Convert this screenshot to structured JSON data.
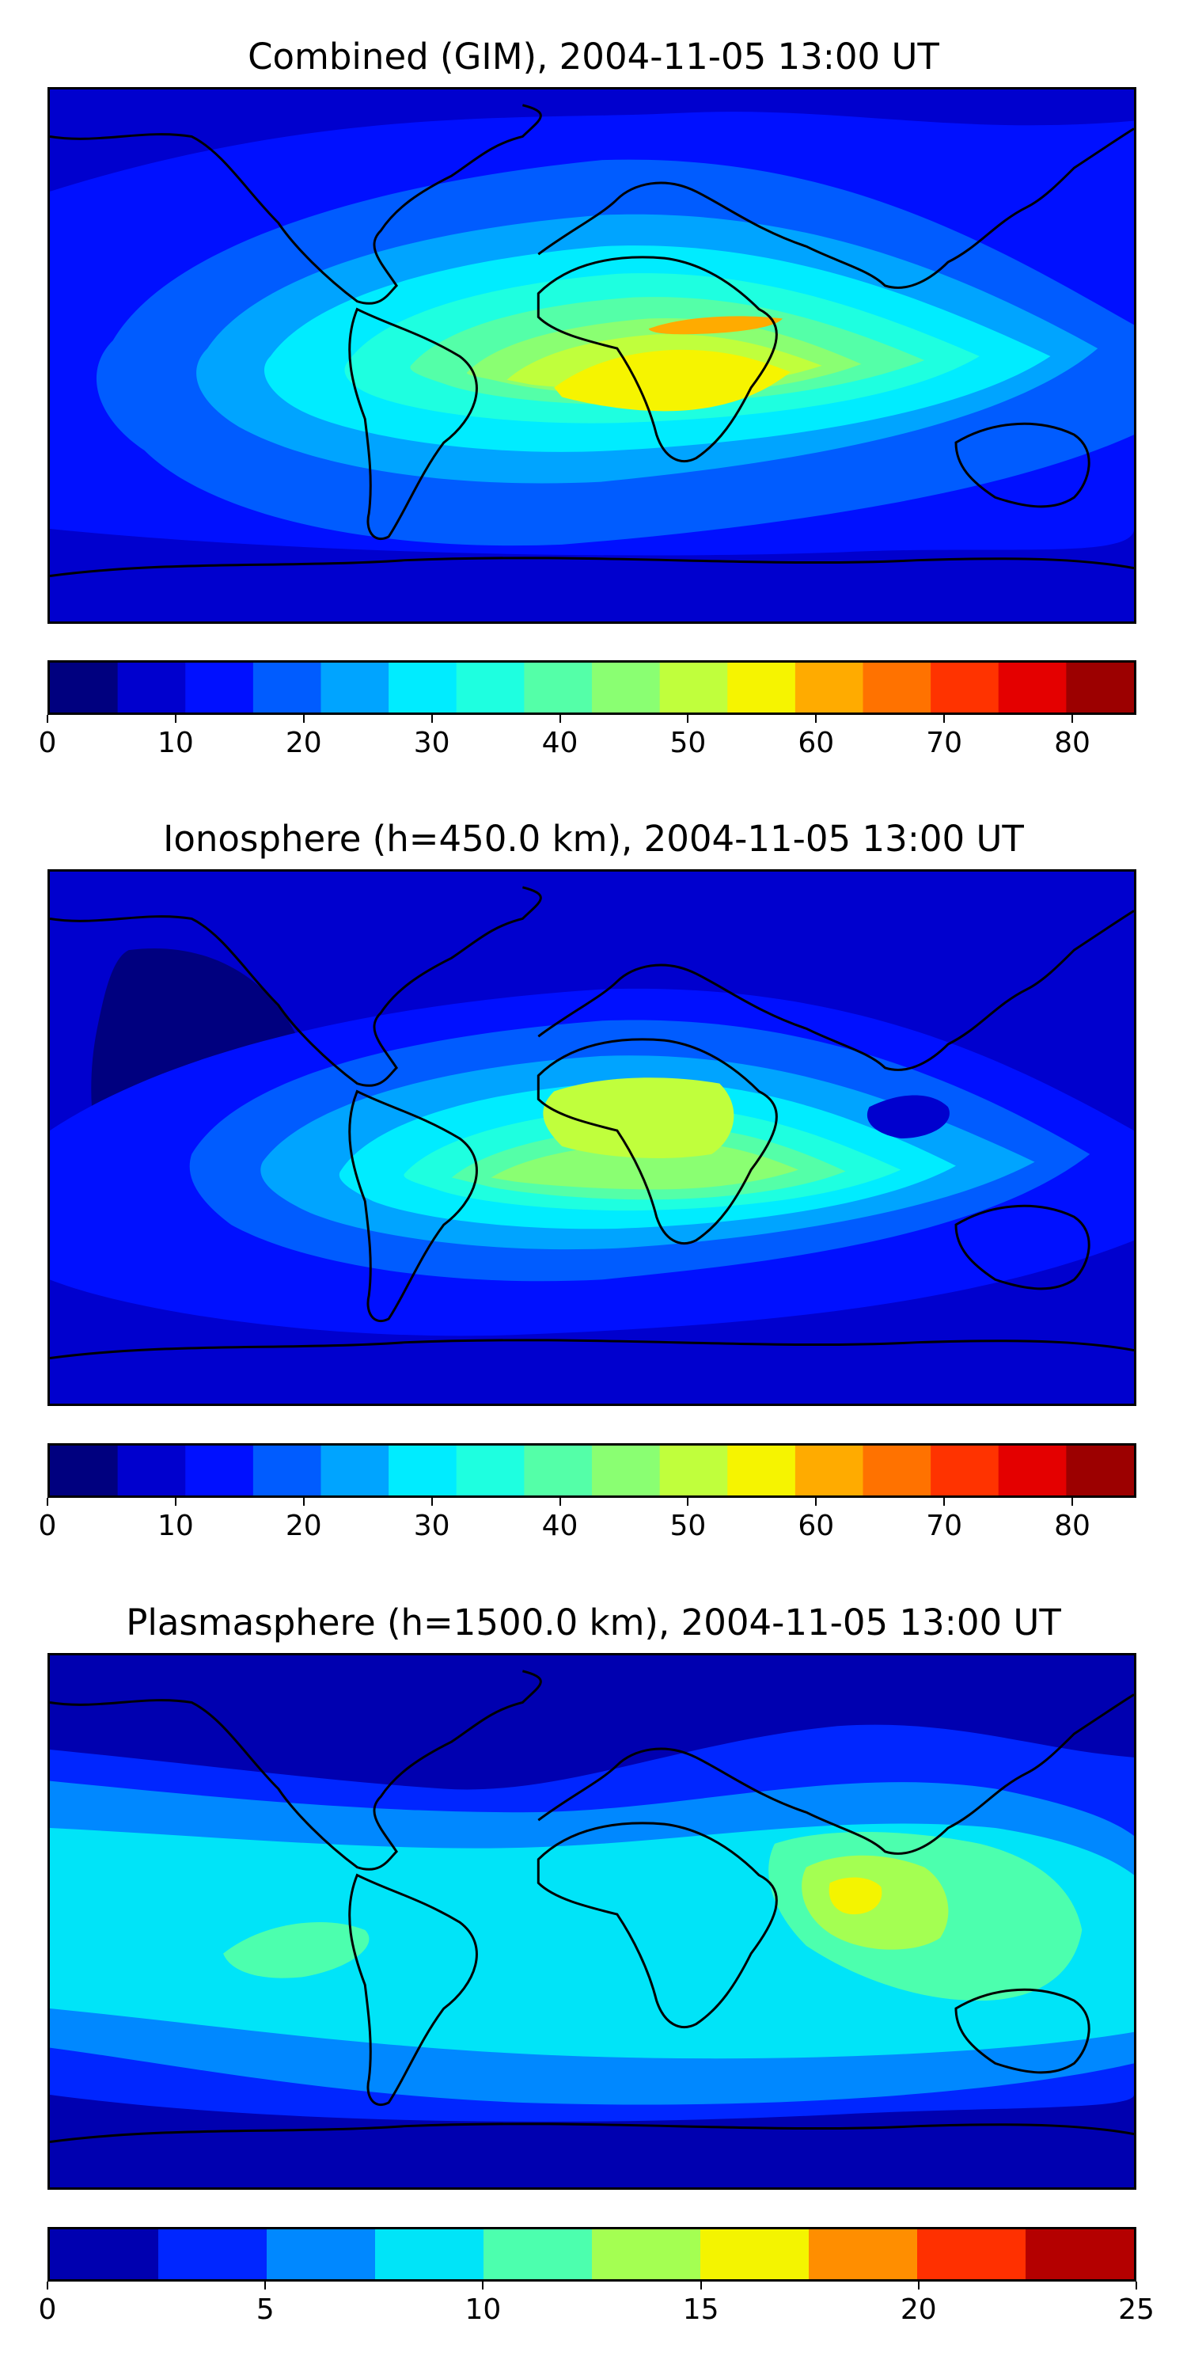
{
  "panels": [
    {
      "title": "Combined (GIM), 2004-11-05 13:00 UT",
      "colorbar": {
        "min": 0,
        "max": 85,
        "step": 5,
        "colors": [
          "#00007f",
          "#0000ce",
          "#0010ff",
          "#005cff",
          "#00a4ff",
          "#00ecff",
          "#1effe0",
          "#54ffa8",
          "#8aff72",
          "#c0ff3c",
          "#f6f400",
          "#ffab00",
          "#ff7200",
          "#ff3300",
          "#e40000",
          "#9c0000"
        ],
        "ticks": [
          "0",
          "10",
          "20",
          "30",
          "40",
          "50",
          "60",
          "70",
          "80"
        ]
      },
      "background_color": "#0010ff"
    },
    {
      "title": "Ionosphere  (h=450.0 km), 2004-11-05 13:00 UT",
      "colorbar": {
        "min": 0,
        "max": 85,
        "step": 5,
        "colors": [
          "#00007f",
          "#0000ce",
          "#0010ff",
          "#005cff",
          "#00a4ff",
          "#00ecff",
          "#1effe0",
          "#54ffa8",
          "#8aff72",
          "#c0ff3c",
          "#f6f400",
          "#ffab00",
          "#ff7200",
          "#ff3300",
          "#e40000",
          "#9c0000"
        ],
        "ticks": [
          "0",
          "10",
          "20",
          "30",
          "40",
          "50",
          "60",
          "70",
          "80"
        ]
      },
      "background_color": "#0000ce"
    },
    {
      "title": "Plasmasphere (h=1500.0 km), 2004-11-05 13:00 UT",
      "colorbar": {
        "min": 0,
        "max": 25,
        "step": 2.5,
        "colors": [
          "#0000b0",
          "#0026ff",
          "#0088ff",
          "#00e4f8",
          "#4cffae",
          "#a4ff52",
          "#f4f400",
          "#ff8e00",
          "#ff3000",
          "#b40000"
        ],
        "ticks": [
          "0",
          "5",
          "10",
          "15",
          "20",
          "25"
        ]
      },
      "background_color": "#0026ff"
    }
  ],
  "icons": {
    "map": "world-map-coastlines",
    "contour": "contour-fill"
  }
}
